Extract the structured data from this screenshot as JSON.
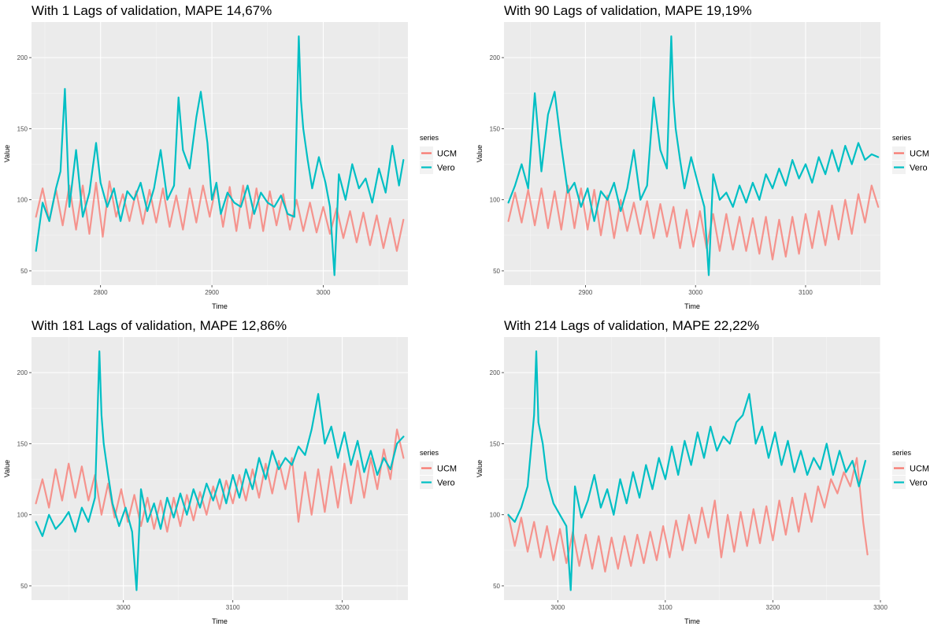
{
  "legend": {
    "title": "series",
    "entries": [
      {
        "name": "UCM",
        "color": "#F8766D"
      },
      {
        "name": "Vero",
        "color": "#00BFC4"
      }
    ]
  },
  "xlabel": "Time",
  "ylabel": "Value",
  "chart_data": [
    {
      "type": "line",
      "title": "With 1 Lags of validation, MAPE 14,67%",
      "xlabel": "Time",
      "ylabel": "Value",
      "xlim": [
        2738,
        3076
      ],
      "ylim": [
        40,
        225
      ],
      "xticks": [
        2800,
        2900,
        3000
      ],
      "yticks": [
        50,
        100,
        150,
        200
      ],
      "grid": true,
      "legend_position": "right",
      "series": [
        {
          "name": "UCM",
          "color": "#F8766D",
          "x": [
            2742,
            2748,
            2754,
            2760,
            2766,
            2772,
            2778,
            2784,
            2790,
            2796,
            2802,
            2808,
            2814,
            2820,
            2826,
            2832,
            2838,
            2844,
            2850,
            2856,
            2862,
            2868,
            2874,
            2880,
            2886,
            2892,
            2898,
            2904,
            2910,
            2916,
            2922,
            2928,
            2934,
            2940,
            2946,
            2952,
            2958,
            2964,
            2970,
            2976,
            2982,
            2988,
            2994,
            3000,
            3006,
            3012,
            3018,
            3024,
            3030,
            3036,
            3042,
            3048,
            3054,
            3060,
            3066,
            3072
          ],
          "values": [
            88,
            108,
            85,
            107,
            82,
            110,
            79,
            110,
            76,
            112,
            74,
            113,
            88,
            104,
            85,
            106,
            83,
            107,
            84,
            108,
            81,
            103,
            79,
            108,
            84,
            110,
            88,
            111,
            81,
            109,
            78,
            110,
            80,
            108,
            78,
            106,
            82,
            104,
            79,
            100,
            78,
            98,
            77,
            95,
            76,
            94,
            73,
            92,
            70,
            91,
            68,
            89,
            66,
            87,
            64,
            86
          ]
        },
        {
          "name": "Vero",
          "color": "#00BFC4",
          "x": [
            2742,
            2748,
            2754,
            2760,
            2764,
            2768,
            2772,
            2778,
            2784,
            2790,
            2796,
            2800,
            2806,
            2812,
            2818,
            2824,
            2830,
            2836,
            2842,
            2848,
            2854,
            2860,
            2866,
            2870,
            2874,
            2880,
            2886,
            2890,
            2896,
            2900,
            2904,
            2908,
            2914,
            2920,
            2926,
            2932,
            2938,
            2944,
            2950,
            2956,
            2962,
            2968,
            2974,
            2978,
            2980,
            2982,
            2986,
            2990,
            2996,
            3002,
            3006,
            3010,
            3014,
            3020,
            3026,
            3032,
            3038,
            3044,
            3050,
            3056,
            3062,
            3068,
            3072
          ],
          "values": [
            64,
            98,
            85,
            108,
            120,
            178,
            95,
            135,
            88,
            105,
            140,
            112,
            95,
            108,
            85,
            106,
            100,
            112,
            92,
            108,
            135,
            100,
            110,
            172,
            135,
            122,
            158,
            176,
            140,
            100,
            112,
            90,
            105,
            98,
            95,
            110,
            90,
            105,
            98,
            95,
            103,
            90,
            88,
            215,
            170,
            150,
            128,
            108,
            130,
            112,
            95,
            47,
            118,
            100,
            125,
            108,
            115,
            98,
            122,
            105,
            138,
            110,
            128
          ]
        }
      ]
    },
    {
      "type": "line",
      "title": "With 90 Lags of validation, MAPE 19,19%",
      "xlabel": "Time",
      "ylabel": "Value",
      "xlim": [
        2826,
        3168
      ],
      "ylim": [
        40,
        225
      ],
      "xticks": [
        2900,
        3000,
        3100
      ],
      "yticks": [
        50,
        100,
        150,
        200
      ],
      "grid": true,
      "legend_position": "right",
      "series": [
        {
          "name": "UCM",
          "color": "#F8766D",
          "x": [
            2830,
            2836,
            2842,
            2848,
            2854,
            2860,
            2866,
            2872,
            2878,
            2884,
            2890,
            2896,
            2902,
            2908,
            2914,
            2920,
            2926,
            2932,
            2938,
            2944,
            2950,
            2956,
            2962,
            2968,
            2974,
            2980,
            2986,
            2992,
            2998,
            3004,
            3010,
            3016,
            3022,
            3028,
            3034,
            3040,
            3046,
            3052,
            3058,
            3064,
            3070,
            3076,
            3082,
            3088,
            3094,
            3100,
            3106,
            3112,
            3118,
            3124,
            3130,
            3136,
            3142,
            3148,
            3154,
            3160,
            3166
          ],
          "values": [
            85,
            105,
            84,
            107,
            82,
            108,
            80,
            106,
            79,
            110,
            80,
            108,
            79,
            107,
            75,
            103,
            73,
            100,
            78,
            98,
            76,
            99,
            73,
            97,
            74,
            95,
            66,
            93,
            67,
            92,
            66,
            90,
            64,
            90,
            65,
            88,
            64,
            87,
            62,
            88,
            58,
            86,
            60,
            88,
            62,
            90,
            66,
            92,
            68,
            96,
            72,
            100,
            76,
            104,
            84,
            110,
            95
          ]
        },
        {
          "name": "Vero",
          "color": "#00BFC4",
          "x": [
            2830,
            2836,
            2842,
            2848,
            2854,
            2860,
            2866,
            2872,
            2878,
            2884,
            2890,
            2896,
            2902,
            2908,
            2914,
            2920,
            2926,
            2932,
            2938,
            2944,
            2950,
            2956,
            2962,
            2968,
            2974,
            2978,
            2980,
            2982,
            2986,
            2990,
            2996,
            3002,
            3008,
            3012,
            3016,
            3022,
            3028,
            3034,
            3040,
            3046,
            3052,
            3058,
            3064,
            3070,
            3076,
            3082,
            3088,
            3094,
            3100,
            3106,
            3112,
            3118,
            3124,
            3130,
            3136,
            3142,
            3148,
            3154,
            3160,
            3166
          ],
          "values": [
            98,
            110,
            125,
            108,
            175,
            120,
            160,
            176,
            138,
            105,
            112,
            95,
            108,
            85,
            106,
            100,
            112,
            92,
            108,
            135,
            100,
            110,
            172,
            135,
            122,
            215,
            170,
            150,
            128,
            108,
            130,
            112,
            95,
            47,
            118,
            100,
            105,
            95,
            110,
            98,
            112,
            100,
            118,
            108,
            122,
            110,
            128,
            115,
            125,
            112,
            130,
            118,
            135,
            120,
            138,
            125,
            140,
            128,
            132,
            130
          ]
        }
      ]
    },
    {
      "type": "line",
      "title": "With 181 Lags of validation, MAPE 12,86%",
      "xlabel": "Time",
      "ylabel": "Value",
      "xlim": [
        2916,
        3260
      ],
      "ylim": [
        40,
        225
      ],
      "xticks": [
        3000,
        3100,
        3200
      ],
      "yticks": [
        50,
        100,
        150,
        200
      ],
      "grid": true,
      "legend_position": "right",
      "series": [
        {
          "name": "UCM",
          "color": "#F8766D",
          "x": [
            2920,
            2926,
            2932,
            2938,
            2944,
            2950,
            2956,
            2962,
            2968,
            2974,
            2980,
            2986,
            2992,
            2998,
            3004,
            3010,
            3016,
            3022,
            3028,
            3034,
            3040,
            3046,
            3052,
            3058,
            3064,
            3070,
            3076,
            3082,
            3088,
            3094,
            3100,
            3106,
            3112,
            3118,
            3124,
            3130,
            3136,
            3142,
            3148,
            3154,
            3160,
            3166,
            3172,
            3178,
            3184,
            3190,
            3196,
            3202,
            3208,
            3214,
            3220,
            3226,
            3232,
            3238,
            3244,
            3250,
            3256
          ],
          "values": [
            108,
            125,
            105,
            132,
            110,
            136,
            112,
            134,
            110,
            128,
            100,
            122,
            98,
            118,
            95,
            114,
            92,
            112,
            90,
            110,
            88,
            112,
            92,
            114,
            96,
            116,
            100,
            120,
            104,
            124,
            108,
            128,
            110,
            132,
            112,
            136,
            115,
            138,
            118,
            140,
            95,
            130,
            100,
            132,
            102,
            134,
            105,
            136,
            108,
            138,
            112,
            140,
            118,
            146,
            125,
            160,
            140
          ]
        },
        {
          "name": "Vero",
          "color": "#00BFC4",
          "x": [
            2920,
            2926,
            2932,
            2938,
            2944,
            2950,
            2956,
            2962,
            2968,
            2974,
            2978,
            2980,
            2982,
            2986,
            2990,
            2996,
            3002,
            3008,
            3012,
            3016,
            3022,
            3028,
            3034,
            3040,
            3046,
            3052,
            3058,
            3064,
            3070,
            3076,
            3082,
            3088,
            3094,
            3100,
            3106,
            3112,
            3118,
            3124,
            3130,
            3136,
            3142,
            3148,
            3154,
            3160,
            3166,
            3172,
            3178,
            3184,
            3190,
            3196,
            3202,
            3208,
            3214,
            3220,
            3226,
            3232,
            3238,
            3244,
            3250,
            3256
          ],
          "values": [
            95,
            85,
            100,
            90,
            95,
            102,
            88,
            105,
            95,
            112,
            215,
            170,
            150,
            128,
            108,
            92,
            105,
            88,
            47,
            118,
            95,
            108,
            90,
            112,
            98,
            115,
            100,
            118,
            105,
            122,
            110,
            125,
            108,
            128,
            112,
            132,
            118,
            140,
            125,
            145,
            132,
            140,
            135,
            148,
            142,
            160,
            185,
            150,
            162,
            140,
            158,
            135,
            152,
            130,
            145,
            128,
            140,
            132,
            150,
            155
          ]
        }
      ]
    },
    {
      "type": "line",
      "title": "With 214 Lags of validation, MAPE 22,22%",
      "xlabel": "Time",
      "ylabel": "Value",
      "xlim": [
        2950,
        3300
      ],
      "ylim": [
        40,
        225
      ],
      "xticks": [
        3000,
        3100,
        3200,
        3300
      ],
      "yticks": [
        50,
        100,
        150,
        200
      ],
      "grid": true,
      "legend_position": "right",
      "series": [
        {
          "name": "UCM",
          "color": "#F8766D",
          "x": [
            2954,
            2960,
            2966,
            2972,
            2978,
            2984,
            2990,
            2996,
            3002,
            3008,
            3014,
            3020,
            3026,
            3032,
            3038,
            3044,
            3050,
            3056,
            3062,
            3068,
            3074,
            3080,
            3086,
            3092,
            3098,
            3104,
            3110,
            3116,
            3122,
            3128,
            3134,
            3140,
            3146,
            3152,
            3158,
            3164,
            3170,
            3176,
            3182,
            3188,
            3194,
            3200,
            3206,
            3212,
            3218,
            3224,
            3230,
            3236,
            3242,
            3248,
            3254,
            3260,
            3266,
            3272,
            3278,
            3284,
            3288
          ],
          "values": [
            100,
            78,
            98,
            74,
            95,
            70,
            92,
            68,
            90,
            66,
            88,
            64,
            86,
            62,
            85,
            60,
            84,
            62,
            85,
            64,
            86,
            66,
            88,
            68,
            92,
            70,
            96,
            75,
            100,
            80,
            105,
            84,
            110,
            70,
            100,
            74,
            102,
            78,
            104,
            80,
            106,
            82,
            110,
            86,
            112,
            88,
            115,
            95,
            120,
            105,
            125,
            115,
            130,
            120,
            140,
            95,
            72
          ]
        },
        {
          "name": "Vero",
          "color": "#00BFC4",
          "x": [
            2954,
            2960,
            2966,
            2972,
            2978,
            2980,
            2982,
            2986,
            2990,
            2996,
            3002,
            3008,
            3012,
            3016,
            3022,
            3028,
            3034,
            3040,
            3046,
            3052,
            3058,
            3064,
            3070,
            3076,
            3082,
            3088,
            3094,
            3100,
            3106,
            3112,
            3118,
            3124,
            3130,
            3136,
            3142,
            3148,
            3154,
            3160,
            3166,
            3172,
            3178,
            3184,
            3190,
            3196,
            3202,
            3208,
            3214,
            3220,
            3226,
            3232,
            3238,
            3244,
            3250,
            3256,
            3262,
            3268,
            3274,
            3280,
            3286
          ],
          "values": [
            100,
            95,
            105,
            120,
            170,
            215,
            165,
            150,
            125,
            108,
            100,
            92,
            47,
            120,
            98,
            110,
            128,
            105,
            118,
            100,
            125,
            108,
            130,
            112,
            135,
            118,
            140,
            125,
            148,
            128,
            152,
            135,
            158,
            140,
            162,
            145,
            155,
            150,
            165,
            170,
            185,
            150,
            162,
            140,
            158,
            135,
            152,
            130,
            145,
            128,
            140,
            132,
            150,
            128,
            145,
            130,
            138,
            120,
            138
          ]
        }
      ]
    }
  ]
}
